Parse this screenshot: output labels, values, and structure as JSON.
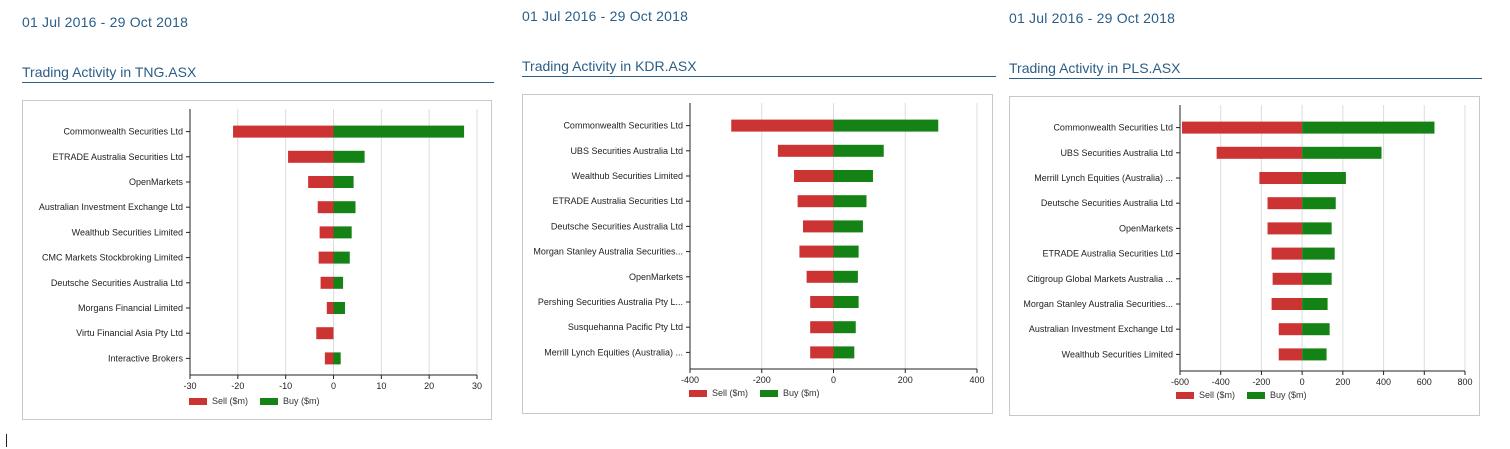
{
  "colors": {
    "sell": "#cc3333",
    "buy": "#148214",
    "title": "#2a5e88",
    "axis": "#222222",
    "grid": "#dddddd"
  },
  "legend": {
    "sell_label": "Sell ($m)",
    "buy_label": "Buy ($m)"
  },
  "panels": [
    {
      "date_range": "01 Jul 2016 - 29 Oct 2018",
      "title": "Trading Activity in TNG.ASX"
    },
    {
      "date_range": "01 Jul 2016 - 29 Oct 2018",
      "title": "Trading Activity in KDR.ASX"
    },
    {
      "date_range": "01 Jul 2016 - 29 Oct 2018",
      "title": "Trading Activity in PLS.ASX"
    }
  ],
  "chart_data": [
    {
      "type": "bar",
      "orientation": "horizontal",
      "stacking": "diverging",
      "categories": [
        "Commonwealth Securities Ltd",
        "ETRADE Australia Securities Ltd",
        "OpenMarkets",
        "Australian Investment Exchange Ltd",
        "Wealthub Securities Limited",
        "CMC Markets Stockbroking Limited",
        "Deutsche Securities Australia Ltd",
        "Morgans Financial Limited",
        "Virtu Financial Asia Pty Ltd",
        "Interactive Brokers"
      ],
      "series": [
        {
          "name": "Sell ($m)",
          "values": [
            -21,
            -9.5,
            -5.3,
            -3.3,
            -2.9,
            -3.1,
            -2.7,
            -1.4,
            -3.6,
            -1.8
          ]
        },
        {
          "name": "Buy ($m)",
          "values": [
            27.3,
            6.5,
            4.2,
            4.6,
            3.8,
            3.4,
            2.0,
            2.4,
            0,
            1.5
          ]
        }
      ],
      "xlim": [
        -30,
        30
      ],
      "xticks": [
        -30,
        -20,
        -10,
        0,
        10,
        20,
        30
      ],
      "grid": true,
      "legend_position": "bottom-left"
    },
    {
      "type": "bar",
      "orientation": "horizontal",
      "stacking": "diverging",
      "categories": [
        "Commonwealth Securities Ltd",
        "UBS Securities Australia Ltd",
        "Wealthub Securities Limited",
        "ETRADE Australia Securities Ltd",
        "Deutsche Securities Australia Ltd",
        "Morgan Stanley Australia Securities...",
        "OpenMarkets",
        "Pershing Securities Australia Pty L...",
        "Susquehanna Pacific Pty Ltd",
        "Merrill Lynch Equities (Australia) ..."
      ],
      "series": [
        {
          "name": "Sell ($m)",
          "values": [
            -285,
            -155,
            -110,
            -100,
            -85,
            -95,
            -75,
            -65,
            -65,
            -65
          ]
        },
        {
          "name": "Buy ($m)",
          "values": [
            292,
            140,
            110,
            92,
            82,
            70,
            68,
            70,
            62,
            58
          ]
        }
      ],
      "xlim": [
        -400,
        400
      ],
      "xticks": [
        -400,
        -200,
        0,
        200,
        400
      ],
      "grid": true,
      "legend_position": "bottom-left"
    },
    {
      "type": "bar",
      "orientation": "horizontal",
      "stacking": "diverging",
      "categories": [
        "Commonwealth Securities Ltd",
        "UBS Securities Australia Ltd",
        "Merrill Lynch Equities (Australia) ...",
        "Deutsche Securities Australia Ltd",
        "OpenMarkets",
        "ETRADE Australia Securities Ltd",
        "Citigroup Global Markets Australia ...",
        "Morgan Stanley Australia Securities...",
        "Australian Investment Exchange Ltd",
        "Wealthub Securities Limited"
      ],
      "series": [
        {
          "name": "Sell ($m)",
          "values": [
            -590,
            -420,
            -210,
            -170,
            -170,
            -150,
            -145,
            -150,
            -115,
            -115
          ]
        },
        {
          "name": "Buy ($m)",
          "values": [
            650,
            390,
            215,
            165,
            145,
            160,
            145,
            125,
            135,
            120
          ]
        }
      ],
      "xlim": [
        -600,
        800
      ],
      "xticks": [
        -600,
        -400,
        -200,
        0,
        200,
        400,
        600,
        800
      ],
      "grid": true,
      "legend_position": "bottom-left"
    }
  ]
}
